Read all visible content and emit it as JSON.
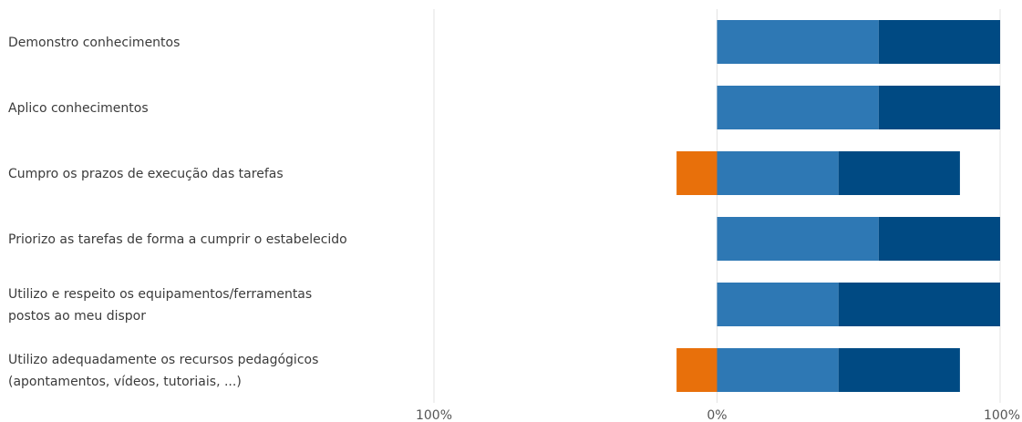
{
  "chart_data": {
    "type": "bar",
    "orientation": "horizontal",
    "stacked": true,
    "diverging": true,
    "categories": [
      [
        "Demonstro conhecimentos"
      ],
      [
        "Aplico conhecimentos"
      ],
      [
        "Cumpro os prazos de execução das tarefas"
      ],
      [
        "Priorizo as tarefas de forma a cumprir o estabelecido"
      ],
      [
        "Utilizo e respeito os equipamentos/ferramentas",
        "postos ao meu dispor"
      ],
      [
        "Utilizo adequadamente os recursos pedagógicos",
        "(apontamentos, vídeos, tutoriais, ...)"
      ]
    ],
    "series": [
      {
        "color": "#e8700b",
        "side": "negative",
        "values": [
          0,
          0,
          14.3,
          0,
          0,
          14.3
        ]
      },
      {
        "color": "#2e78b4",
        "side": "positive",
        "values": [
          57.1,
          57.1,
          42.9,
          57.1,
          42.9,
          42.9
        ]
      },
      {
        "color": "#004a83",
        "side": "positive",
        "values": [
          42.9,
          42.9,
          42.9,
          42.9,
          57.1,
          42.9
        ]
      }
    ],
    "xlim": [
      -100,
      100
    ],
    "tick_values": [
      -100,
      0,
      100
    ],
    "tick_labels": [
      "100%",
      "0%",
      "100%"
    ],
    "grid": true,
    "legend": "none"
  }
}
